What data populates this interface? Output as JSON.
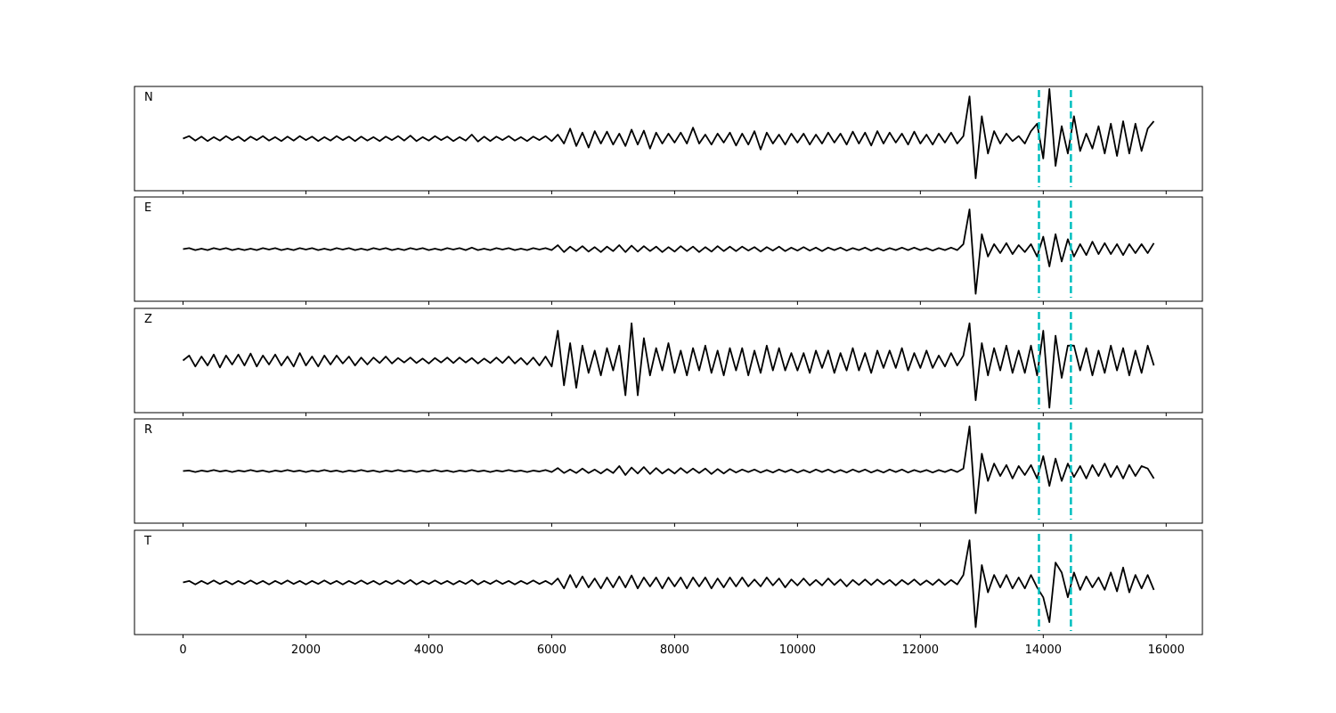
{
  "chart_data": {
    "type": "line",
    "x": [
      0,
      100,
      200,
      300,
      400,
      500,
      600,
      700,
      800,
      900,
      1000,
      1100,
      1200,
      1300,
      1400,
      1500,
      1600,
      1700,
      1800,
      1900,
      2000,
      2100,
      2200,
      2300,
      2400,
      2500,
      2600,
      2700,
      2800,
      2900,
      3000,
      3100,
      3200,
      3300,
      3400,
      3500,
      3600,
      3700,
      3800,
      3900,
      4000,
      4100,
      4200,
      4300,
      4400,
      4500,
      4600,
      4700,
      4800,
      4900,
      5000,
      5100,
      5200,
      5300,
      5400,
      5500,
      5600,
      5700,
      5800,
      5900,
      6000,
      6100,
      6200,
      6300,
      6400,
      6500,
      6600,
      6700,
      6800,
      6900,
      7000,
      7100,
      7200,
      7300,
      7400,
      7500,
      7600,
      7700,
      7800,
      7900,
      8000,
      8100,
      8200,
      8300,
      8400,
      8500,
      8600,
      8700,
      8800,
      8900,
      9000,
      9100,
      9200,
      9300,
      9400,
      9500,
      9600,
      9700,
      9800,
      9900,
      10000,
      10100,
      10200,
      10300,
      10400,
      10500,
      10600,
      10700,
      10800,
      10900,
      11000,
      11100,
      11200,
      11300,
      11400,
      11500,
      11600,
      11700,
      11800,
      11900,
      12000,
      12100,
      12200,
      12300,
      12400,
      12500,
      12600,
      12700,
      12800,
      12900,
      13000,
      13100,
      13200,
      13300,
      13400,
      13500,
      13600,
      13700,
      13800,
      13900,
      14000,
      14100,
      14200,
      14300,
      14400,
      14500,
      14600,
      14700,
      14800,
      14900,
      15000,
      15100,
      15200,
      15300,
      15400,
      15500,
      15600,
      15700,
      15800
    ],
    "xlim": [
      -790,
      16590
    ],
    "xticks": [
      0,
      2000,
      4000,
      6000,
      8000,
      10000,
      12000,
      14000,
      16000
    ],
    "ylim": [
      -1.05,
      1.05
    ],
    "series": [
      {
        "name": "N",
        "color": "#000000",
        "values": [
          0,
          0.05,
          -0.04,
          0.04,
          -0.05,
          0.03,
          -0.04,
          0.05,
          -0.03,
          0.04,
          -0.05,
          0.04,
          -0.03,
          0.05,
          -0.04,
          0.03,
          -0.05,
          0.04,
          -0.04,
          0.05,
          -0.03,
          0.04,
          -0.05,
          0.03,
          -0.04,
          0.05,
          -0.03,
          0.04,
          -0.05,
          0.04,
          -0.04,
          0.03,
          -0.05,
          0.04,
          -0.03,
          0.05,
          -0.04,
          0.06,
          -0.05,
          0.03,
          -0.04,
          0.05,
          -0.03,
          0.04,
          -0.05,
          0.03,
          -0.04,
          0.08,
          -0.06,
          0.04,
          -0.05,
          0.04,
          -0.03,
          0.05,
          -0.04,
          0.03,
          -0.05,
          0.04,
          -0.03,
          0.05,
          -0.05,
          0.08,
          -0.1,
          0.2,
          -0.15,
          0.12,
          -0.18,
          0.15,
          -0.1,
          0.14,
          -0.12,
          0.1,
          -0.15,
          0.18,
          -0.12,
          0.16,
          -0.2,
          0.12,
          -0.1,
          0.1,
          -0.08,
          0.12,
          -0.1,
          0.22,
          -0.1,
          0.08,
          -0.12,
          0.1,
          -0.08,
          0.12,
          -0.14,
          0.1,
          -0.12,
          0.15,
          -0.22,
          0.12,
          -0.1,
          0.08,
          -0.12,
          0.1,
          -0.08,
          0.1,
          -0.12,
          0.08,
          -0.1,
          0.12,
          -0.08,
          0.1,
          -0.12,
          0.14,
          -0.1,
          0.12,
          -0.14,
          0.15,
          -0.1,
          0.12,
          -0.08,
          0.1,
          -0.12,
          0.14,
          -0.1,
          0.08,
          -0.12,
          0.1,
          -0.08,
          0.12,
          -0.1,
          0.05,
          0.85,
          -0.8,
          0.45,
          -0.3,
          0.15,
          -0.1,
          0.1,
          -0.05,
          0.05,
          -0.1,
          0.15,
          0.3,
          -0.4,
          1.0,
          -0.55,
          0.25,
          -0.3,
          0.45,
          -0.25,
          0.1,
          -0.2,
          0.25,
          -0.3,
          0.3,
          -0.35,
          0.35,
          -0.3,
          0.3,
          -0.25,
          0.2,
          0.35
        ]
      },
      {
        "name": "E",
        "color": "#000000",
        "values": [
          0,
          0.02,
          -0.02,
          0.01,
          -0.02,
          0.02,
          -0.01,
          0.02,
          -0.02,
          0.01,
          -0.02,
          0.01,
          -0.02,
          0.02,
          -0.01,
          0.02,
          -0.02,
          0.01,
          -0.02,
          0.02,
          -0.01,
          0.02,
          -0.02,
          0.01,
          -0.02,
          0.02,
          -0.01,
          0.02,
          -0.02,
          0.01,
          -0.02,
          0.02,
          -0.01,
          0.02,
          -0.02,
          0.01,
          -0.02,
          0.02,
          -0.01,
          0.02,
          -0.02,
          0.01,
          -0.02,
          0.02,
          -0.01,
          0.02,
          -0.02,
          0.03,
          -0.02,
          0.01,
          -0.02,
          0.02,
          -0.01,
          0.02,
          -0.02,
          0.01,
          -0.02,
          0.02,
          -0.01,
          0.02,
          -0.02,
          0.08,
          -0.06,
          0.05,
          -0.04,
          0.06,
          -0.05,
          0.04,
          -0.06,
          0.05,
          -0.04,
          0.08,
          -0.06,
          0.07,
          -0.05,
          0.06,
          -0.04,
          0.05,
          -0.06,
          0.04,
          -0.05,
          0.06,
          -0.04,
          0.05,
          -0.06,
          0.04,
          -0.05,
          0.06,
          -0.04,
          0.05,
          -0.04,
          0.05,
          -0.03,
          0.04,
          -0.05,
          0.04,
          -0.03,
          0.05,
          -0.04,
          0.03,
          -0.03,
          0.04,
          -0.03,
          0.03,
          -0.04,
          0.03,
          -0.02,
          0.03,
          -0.03,
          0.02,
          -0.02,
          0.03,
          -0.03,
          0.02,
          -0.03,
          0.02,
          -0.02,
          0.03,
          -0.02,
          0.03,
          -0.02,
          0.02,
          -0.03,
          0.02,
          -0.02,
          0.03,
          -0.02,
          0.1,
          0.8,
          -0.9,
          0.3,
          -0.15,
          0.1,
          -0.08,
          0.12,
          -0.1,
          0.08,
          -0.06,
          0.1,
          -0.15,
          0.25,
          -0.35,
          0.3,
          -0.25,
          0.2,
          -0.15,
          0.1,
          -0.12,
          0.15,
          -0.1,
          0.12,
          -0.1,
          0.1,
          -0.12,
          0.1,
          -0.08,
          0.1,
          -0.08,
          0.12
        ]
      },
      {
        "name": "Z",
        "color": "#000000",
        "values": [
          0,
          0.1,
          -0.12,
          0.08,
          -0.1,
          0.12,
          -0.14,
          0.1,
          -0.08,
          0.12,
          -0.1,
          0.14,
          -0.12,
          0.1,
          -0.08,
          0.12,
          -0.1,
          0.08,
          -0.12,
          0.15,
          -0.1,
          0.08,
          -0.12,
          0.1,
          -0.08,
          0.1,
          -0.06,
          0.08,
          -0.1,
          0.06,
          -0.08,
          0.06,
          -0.05,
          0.08,
          -0.06,
          0.05,
          -0.04,
          0.06,
          -0.05,
          0.04,
          -0.06,
          0.05,
          -0.04,
          0.06,
          -0.05,
          0.06,
          -0.04,
          0.05,
          -0.06,
          0.04,
          -0.05,
          0.06,
          -0.05,
          0.08,
          -0.06,
          0.05,
          -0.08,
          0.06,
          -0.1,
          0.08,
          -0.12,
          0.6,
          -0.5,
          0.35,
          -0.55,
          0.3,
          -0.25,
          0.2,
          -0.3,
          0.25,
          -0.2,
          0.3,
          -0.7,
          0.75,
          -0.7,
          0.45,
          -0.3,
          0.25,
          -0.2,
          0.35,
          -0.25,
          0.2,
          -0.3,
          0.25,
          -0.2,
          0.3,
          -0.25,
          0.2,
          -0.3,
          0.25,
          -0.2,
          0.25,
          -0.3,
          0.2,
          -0.25,
          0.3,
          -0.2,
          0.25,
          -0.2,
          0.15,
          -0.2,
          0.15,
          -0.25,
          0.2,
          -0.15,
          0.2,
          -0.25,
          0.15,
          -0.2,
          0.25,
          -0.2,
          0.15,
          -0.25,
          0.2,
          -0.15,
          0.2,
          -0.15,
          0.25,
          -0.2,
          0.15,
          -0.15,
          0.2,
          -0.15,
          0.1,
          -0.12,
          0.15,
          -0.1,
          0.1,
          0.75,
          -0.8,
          0.35,
          -0.3,
          0.25,
          -0.2,
          0.3,
          -0.25,
          0.2,
          -0.25,
          0.3,
          -0.3,
          0.6,
          -0.95,
          0.5,
          -0.35,
          0.3,
          0.3,
          -0.2,
          0.25,
          -0.3,
          0.2,
          -0.25,
          0.3,
          -0.2,
          0.25,
          -0.3,
          0.2,
          -0.25,
          0.3,
          -0.1
        ]
      },
      {
        "name": "R",
        "color": "#000000",
        "values": [
          0,
          0.01,
          -0.02,
          0.01,
          -0.01,
          0.02,
          -0.01,
          0.01,
          -0.02,
          0.01,
          -0.01,
          0.02,
          -0.01,
          0.01,
          -0.02,
          0.01,
          -0.01,
          0.02,
          -0.01,
          0.01,
          -0.02,
          0.01,
          -0.01,
          0.02,
          -0.01,
          0.01,
          -0.02,
          0.01,
          -0.01,
          0.02,
          -0.01,
          0.01,
          -0.02,
          0.01,
          -0.01,
          0.02,
          -0.01,
          0.01,
          -0.02,
          0.01,
          -0.01,
          0.02,
          -0.01,
          0.01,
          -0.02,
          0.01,
          -0.01,
          0.02,
          -0.01,
          0.01,
          -0.02,
          0.01,
          -0.01,
          0.02,
          -0.01,
          0.01,
          -0.02,
          0.01,
          -0.01,
          0.02,
          -0.02,
          0.06,
          -0.04,
          0.03,
          -0.04,
          0.05,
          -0.04,
          0.03,
          -0.05,
          0.04,
          -0.04,
          0.1,
          -0.08,
          0.07,
          -0.05,
          0.08,
          -0.06,
          0.06,
          -0.05,
          0.04,
          -0.05,
          0.06,
          -0.04,
          0.05,
          -0.04,
          0.05,
          -0.06,
          0.04,
          -0.05,
          0.04,
          -0.03,
          0.03,
          -0.02,
          0.03,
          -0.03,
          0.02,
          -0.03,
          0.03,
          -0.02,
          0.03,
          -0.03,
          0.02,
          -0.03,
          0.03,
          -0.02,
          0.03,
          -0.03,
          0.02,
          -0.03,
          0.03,
          -0.02,
          0.03,
          -0.03,
          0.02,
          -0.03,
          0.03,
          -0.02,
          0.03,
          -0.03,
          0.02,
          -0.02,
          0.02,
          -0.03,
          0.02,
          -0.02,
          0.03,
          -0.02,
          0.05,
          0.9,
          -0.85,
          0.35,
          -0.2,
          0.15,
          -0.1,
          0.12,
          -0.15,
          0.1,
          -0.08,
          0.12,
          -0.15,
          0.3,
          -0.3,
          0.25,
          -0.2,
          0.15,
          -0.12,
          0.1,
          -0.15,
          0.12,
          -0.1,
          0.15,
          -0.12,
          0.1,
          -0.15,
          0.12,
          -0.1,
          0.1,
          0.05,
          -0.15
        ]
      },
      {
        "name": "T",
        "color": "#000000",
        "values": [
          0,
          0.03,
          -0.04,
          0.03,
          -0.03,
          0.04,
          -0.03,
          0.03,
          -0.04,
          0.03,
          -0.03,
          0.04,
          -0.03,
          0.03,
          -0.04,
          0.03,
          -0.03,
          0.04,
          -0.03,
          0.03,
          -0.04,
          0.03,
          -0.03,
          0.04,
          -0.03,
          0.03,
          -0.04,
          0.03,
          -0.03,
          0.04,
          -0.03,
          0.03,
          -0.04,
          0.03,
          -0.03,
          0.04,
          -0.03,
          0.05,
          -0.04,
          0.03,
          -0.03,
          0.04,
          -0.03,
          0.03,
          -0.04,
          0.03,
          -0.03,
          0.05,
          -0.04,
          0.03,
          -0.03,
          0.04,
          -0.03,
          0.03,
          -0.04,
          0.03,
          -0.03,
          0.04,
          -0.03,
          0.03,
          -0.04,
          0.08,
          -0.12,
          0.15,
          -0.1,
          0.12,
          -0.1,
          0.08,
          -0.12,
          0.1,
          -0.1,
          0.12,
          -0.1,
          0.14,
          -0.12,
          0.1,
          -0.08,
          0.1,
          -0.12,
          0.1,
          -0.08,
          0.1,
          -0.12,
          0.1,
          -0.08,
          0.1,
          -0.12,
          0.08,
          -0.1,
          0.1,
          -0.08,
          0.1,
          -0.08,
          0.06,
          -0.08,
          0.1,
          -0.06,
          0.08,
          -0.1,
          0.06,
          -0.06,
          0.08,
          -0.06,
          0.05,
          -0.06,
          0.08,
          -0.05,
          0.06,
          -0.08,
          0.05,
          -0.05,
          0.06,
          -0.05,
          0.06,
          -0.04,
          0.05,
          -0.06,
          0.05,
          -0.04,
          0.06,
          -0.05,
          0.04,
          -0.05,
          0.06,
          -0.05,
          0.05,
          -0.04,
          0.15,
          0.85,
          -0.9,
          0.35,
          -0.2,
          0.15,
          -0.1,
          0.15,
          -0.12,
          0.1,
          -0.12,
          0.15,
          -0.1,
          -0.3,
          -0.8,
          0.4,
          0.2,
          -0.3,
          0.2,
          -0.15,
          0.12,
          -0.1,
          0.1,
          -0.15,
          0.2,
          -0.18,
          0.3,
          -0.2,
          0.15,
          -0.12,
          0.15,
          -0.15
        ]
      }
    ],
    "vlines": [
      13930,
      14450
    ],
    "vline_color": "#00bfbf"
  }
}
